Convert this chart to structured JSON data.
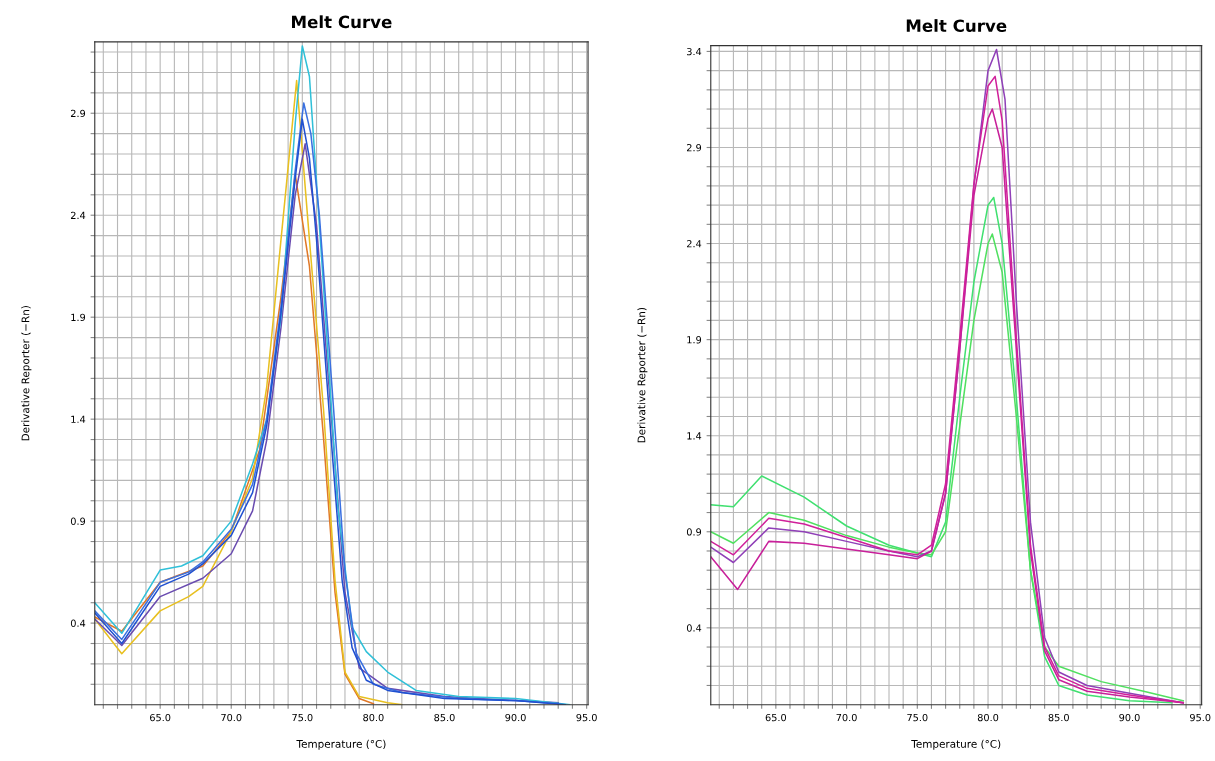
{
  "chart_data": [
    {
      "type": "line",
      "title": "Melt Curve",
      "xlabel": "Temperature (°C)",
      "ylabel": "Derivative Reporter (−Rn)",
      "grid": true,
      "marker": "none",
      "line_style": "solid",
      "xlim": [
        60.4,
        95.1
      ],
      "ylim": [
        0,
        3.25
      ],
      "xticks": [
        {
          "value": 61,
          "label": null
        },
        {
          "value": 62,
          "label": null
        },
        {
          "value": 63,
          "label": null
        },
        {
          "value": 64,
          "label": null
        },
        {
          "value": 65,
          "label": "65.0"
        },
        {
          "value": 66,
          "label": null
        },
        {
          "value": 67,
          "label": null
        },
        {
          "value": 68,
          "label": null
        },
        {
          "value": 69,
          "label": null
        },
        {
          "value": 70,
          "label": "70.0"
        },
        {
          "value": 71,
          "label": null
        },
        {
          "value": 72,
          "label": null
        },
        {
          "value": 73,
          "label": null
        },
        {
          "value": 74,
          "label": null
        },
        {
          "value": 75,
          "label": "75.0"
        },
        {
          "value": 76,
          "label": null
        },
        {
          "value": 77,
          "label": null
        },
        {
          "value": 78,
          "label": null
        },
        {
          "value": 79,
          "label": null
        },
        {
          "value": 80,
          "label": "80.0"
        },
        {
          "value": 81,
          "label": null
        },
        {
          "value": 82,
          "label": null
        },
        {
          "value": 83,
          "label": null
        },
        {
          "value": 84,
          "label": null
        },
        {
          "value": 85,
          "label": "85.0"
        },
        {
          "value": 86,
          "label": null
        },
        {
          "value": 87,
          "label": null
        },
        {
          "value": 88,
          "label": null
        },
        {
          "value": 89,
          "label": null
        },
        {
          "value": 90,
          "label": "90.0"
        },
        {
          "value": 91,
          "label": null
        },
        {
          "value": 92,
          "label": null
        },
        {
          "value": 93,
          "label": null
        },
        {
          "value": 94,
          "label": null
        },
        {
          "value": 95,
          "label": "95.0"
        }
      ],
      "yticks": [
        {
          "value": 0.1,
          "label": null
        },
        {
          "value": 0.2,
          "label": null
        },
        {
          "value": 0.3,
          "label": null
        },
        0.4,
        {
          "value": 0.5,
          "label": null
        },
        {
          "value": 0.6,
          "label": null
        },
        {
          "value": 0.7,
          "label": null
        },
        {
          "value": 0.8,
          "label": null
        },
        0.9,
        {
          "value": 1.0,
          "label": null
        },
        {
          "value": 1.1,
          "label": null
        },
        {
          "value": 1.2,
          "label": null
        },
        {
          "value": 1.3,
          "label": null
        },
        1.4,
        {
          "value": 1.5,
          "label": null
        },
        {
          "value": 1.6,
          "label": null
        },
        {
          "value": 1.7,
          "label": null
        },
        {
          "value": 1.8,
          "label": null
        },
        1.9,
        {
          "value": 2.0,
          "label": null
        },
        {
          "value": 2.1,
          "label": null
        },
        {
          "value": 2.2,
          "label": null
        },
        {
          "value": 2.3,
          "label": null
        },
        2.4,
        {
          "value": 2.5,
          "label": null
        },
        {
          "value": 2.6,
          "label": null
        },
        {
          "value": 2.7,
          "label": null
        },
        {
          "value": 2.8,
          "label": null
        },
        2.9,
        {
          "value": 3.0,
          "label": null
        },
        {
          "value": 3.1,
          "label": null
        },
        {
          "value": 3.2,
          "label": null
        }
      ],
      "series": [
        {
          "color": "#e07828",
          "x": [
            60.4,
            62.3,
            65,
            68,
            70,
            72,
            73.5,
            74.5,
            75.5,
            76.5,
            77.3,
            78,
            79,
            80
          ],
          "values": [
            0.43,
            0.36,
            0.6,
            0.68,
            0.85,
            1.25,
            2.0,
            2.6,
            2.15,
            1.3,
            0.55,
            0.15,
            0.03,
            0.005
          ]
        },
        {
          "color": "#e8c020",
          "x": [
            60.4,
            62.3,
            65,
            67,
            68,
            70,
            71.5,
            72.5,
            73.5,
            74.6,
            75.5,
            76.5,
            77.3,
            78,
            79,
            81,
            82
          ],
          "values": [
            0.42,
            0.25,
            0.46,
            0.53,
            0.58,
            0.85,
            1.11,
            1.56,
            2.28,
            3.06,
            2.28,
            1.44,
            0.61,
            0.16,
            0.04,
            0.01,
            0.0
          ]
        },
        {
          "color": "#6a4cb0",
          "x": [
            60.4,
            62.3,
            65,
            68,
            70,
            71.5,
            72.5,
            73.5,
            74.5,
            75.2,
            76,
            77,
            78,
            79,
            81,
            85,
            90,
            93
          ],
          "values": [
            0.42,
            0.29,
            0.53,
            0.62,
            0.74,
            0.95,
            1.3,
            1.85,
            2.5,
            2.75,
            2.35,
            1.45,
            0.55,
            0.18,
            0.08,
            0.04,
            0.02,
            0.01
          ]
        },
        {
          "color": "#30c0d8",
          "x": [
            60.4,
            62.3,
            65,
            66.5,
            68,
            70,
            71.5,
            72.5,
            73.5,
            74.5,
            75,
            75.5,
            76.5,
            77.5,
            78.5,
            79.5,
            81,
            83,
            86,
            90,
            93.8
          ],
          "values": [
            0.5,
            0.35,
            0.66,
            0.68,
            0.73,
            0.9,
            1.18,
            1.4,
            1.9,
            2.85,
            3.23,
            3.08,
            2.04,
            0.97,
            0.38,
            0.26,
            0.16,
            0.07,
            0.04,
            0.03,
            0.0
          ]
        },
        {
          "color": "#3a70e0",
          "x": [
            60.4,
            62.3,
            65,
            67,
            68,
            70,
            71.5,
            72.5,
            73.5,
            74.5,
            75.1,
            75.6,
            76.2,
            77.2,
            78,
            78.8,
            80,
            82,
            86,
            90,
            93
          ],
          "values": [
            0.46,
            0.32,
            0.6,
            0.65,
            0.7,
            0.86,
            1.08,
            1.4,
            1.95,
            2.62,
            2.95,
            2.8,
            2.4,
            1.45,
            0.65,
            0.25,
            0.1,
            0.06,
            0.03,
            0.02,
            0.005
          ]
        },
        {
          "color": "#2050d0",
          "x": [
            60.4,
            62.3,
            65,
            67,
            68,
            70,
            71.5,
            72.5,
            73.5,
            74.5,
            75,
            75.5,
            76,
            77,
            77.8,
            78.5,
            79.5,
            81,
            85,
            90,
            93.5
          ],
          "values": [
            0.45,
            0.3,
            0.58,
            0.64,
            0.69,
            0.83,
            1.04,
            1.37,
            1.92,
            2.58,
            2.87,
            2.68,
            2.28,
            1.33,
            0.61,
            0.28,
            0.12,
            0.07,
            0.03,
            0.02,
            0.0
          ]
        }
      ]
    },
    {
      "type": "line",
      "title": "Melt Curve",
      "xlabel": "Temperature (°C)",
      "ylabel": "Derivative Reporter (−Rn)",
      "grid": true,
      "marker": "none",
      "line_style": "solid",
      "xlim": [
        60.4,
        95.1
      ],
      "ylim": [
        0,
        3.43
      ],
      "xticks": [
        {
          "value": 61,
          "label": null
        },
        {
          "value": 62,
          "label": null
        },
        {
          "value": 63,
          "label": null
        },
        {
          "value": 64,
          "label": null
        },
        {
          "value": 65,
          "label": "65.0"
        },
        {
          "value": 66,
          "label": null
        },
        {
          "value": 67,
          "label": null
        },
        {
          "value": 68,
          "label": null
        },
        {
          "value": 69,
          "label": null
        },
        {
          "value": 70,
          "label": "70.0"
        },
        {
          "value": 71,
          "label": null
        },
        {
          "value": 72,
          "label": null
        },
        {
          "value": 73,
          "label": null
        },
        {
          "value": 74,
          "label": null
        },
        {
          "value": 75,
          "label": "75.0"
        },
        {
          "value": 76,
          "label": null
        },
        {
          "value": 77,
          "label": null
        },
        {
          "value": 78,
          "label": null
        },
        {
          "value": 79,
          "label": null
        },
        {
          "value": 80,
          "label": "80.0"
        },
        {
          "value": 81,
          "label": null
        },
        {
          "value": 82,
          "label": null
        },
        {
          "value": 83,
          "label": null
        },
        {
          "value": 84,
          "label": null
        },
        {
          "value": 85,
          "label": "85.0"
        },
        {
          "value": 86,
          "label": null
        },
        {
          "value": 87,
          "label": null
        },
        {
          "value": 88,
          "label": null
        },
        {
          "value": 89,
          "label": null
        },
        {
          "value": 90,
          "label": "90.0"
        },
        {
          "value": 91,
          "label": null
        },
        {
          "value": 92,
          "label": null
        },
        {
          "value": 93,
          "label": null
        },
        {
          "value": 94,
          "label": null
        },
        {
          "value": 95,
          "label": "95.0"
        }
      ],
      "yticks": [
        {
          "value": 0.1,
          "label": null
        },
        {
          "value": 0.2,
          "label": null
        },
        {
          "value": 0.3,
          "label": null
        },
        0.4,
        {
          "value": 0.5,
          "label": null
        },
        {
          "value": 0.6,
          "label": null
        },
        {
          "value": 0.7,
          "label": null
        },
        {
          "value": 0.8,
          "label": null
        },
        0.9,
        {
          "value": 1.0,
          "label": null
        },
        {
          "value": 1.1,
          "label": null
        },
        {
          "value": 1.2,
          "label": null
        },
        {
          "value": 1.3,
          "label": null
        },
        1.4,
        {
          "value": 1.5,
          "label": null
        },
        {
          "value": 1.6,
          "label": null
        },
        {
          "value": 1.7,
          "label": null
        },
        {
          "value": 1.8,
          "label": null
        },
        1.9,
        {
          "value": 2.0,
          "label": null
        },
        {
          "value": 2.1,
          "label": null
        },
        {
          "value": 2.2,
          "label": null
        },
        {
          "value": 2.3,
          "label": null
        },
        2.4,
        {
          "value": 2.5,
          "label": null
        },
        {
          "value": 2.6,
          "label": null
        },
        {
          "value": 2.7,
          "label": null
        },
        {
          "value": 2.8,
          "label": null
        },
        2.9,
        {
          "value": 3.0,
          "label": null
        },
        {
          "value": 3.1,
          "label": null
        },
        {
          "value": 3.2,
          "label": null
        },
        {
          "value": 3.3,
          "label": null
        },
        3.4
      ],
      "series": [
        {
          "color": "#40e070",
          "x": [
            60.4,
            62,
            64,
            67,
            70,
            73,
            75,
            76,
            77,
            78,
            79,
            80,
            80.4,
            81,
            82,
            83,
            84,
            85,
            87,
            90,
            93
          ],
          "values": [
            1.04,
            1.03,
            1.19,
            1.08,
            0.93,
            0.83,
            0.79,
            0.77,
            0.95,
            1.6,
            2.2,
            2.6,
            2.64,
            2.4,
            1.6,
            0.7,
            0.25,
            0.1,
            0.05,
            0.02,
            0.01
          ]
        },
        {
          "color": "#50e060",
          "x": [
            60.4,
            62,
            64.5,
            67,
            70,
            73,
            75,
            76,
            77,
            78,
            79,
            80,
            80.3,
            81,
            82,
            83,
            84,
            85,
            88,
            91,
            93.8
          ],
          "values": [
            0.9,
            0.84,
            1.0,
            0.96,
            0.88,
            0.82,
            0.79,
            0.78,
            0.9,
            1.45,
            2.0,
            2.4,
            2.45,
            2.25,
            1.5,
            0.7,
            0.3,
            0.2,
            0.12,
            0.07,
            0.02
          ]
        },
        {
          "color": "#9040b8",
          "x": [
            60.4,
            62,
            64.5,
            67,
            70,
            73,
            75,
            76,
            77,
            78,
            79,
            80,
            80.6,
            81.2,
            82,
            83,
            84,
            85,
            87,
            90,
            93.8
          ],
          "values": [
            0.82,
            0.74,
            0.92,
            0.9,
            0.85,
            0.8,
            0.77,
            0.8,
            1.1,
            1.85,
            2.7,
            3.3,
            3.41,
            3.15,
            2.1,
            0.95,
            0.35,
            0.17,
            0.1,
            0.06,
            0.01
          ]
        },
        {
          "color": "#c8209a",
          "x": [
            60.4,
            62.3,
            64.5,
            67,
            70,
            73,
            75,
            76,
            77,
            78,
            79,
            80,
            80.3,
            81,
            82,
            83,
            84,
            85,
            87,
            90,
            93.8
          ],
          "values": [
            0.77,
            0.6,
            0.85,
            0.84,
            0.81,
            0.78,
            0.76,
            0.8,
            1.1,
            1.85,
            2.65,
            3.05,
            3.1,
            2.9,
            1.85,
            0.8,
            0.28,
            0.13,
            0.07,
            0.04,
            0.01
          ]
        },
        {
          "color": "#d0209a",
          "x": [
            60.4,
            62,
            64.5,
            67,
            70,
            73,
            75,
            76,
            77,
            78,
            79,
            80,
            80.5,
            81,
            82,
            83,
            84,
            85,
            87,
            90,
            93.8
          ],
          "values": [
            0.85,
            0.78,
            0.97,
            0.94,
            0.87,
            0.8,
            0.78,
            0.83,
            1.15,
            1.91,
            2.71,
            3.22,
            3.27,
            3.04,
            1.91,
            0.83,
            0.3,
            0.15,
            0.085,
            0.05,
            0.01
          ]
        }
      ]
    }
  ]
}
